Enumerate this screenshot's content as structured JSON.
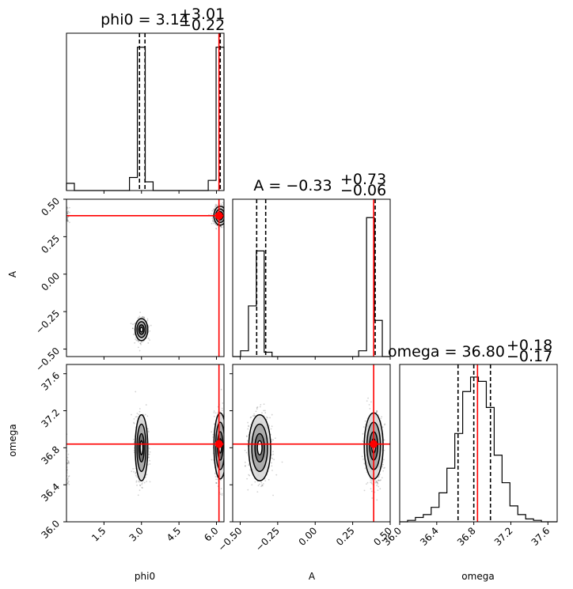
{
  "chart_data": {
    "type": "corner",
    "parameters": [
      {
        "name": "phi0",
        "range": [
          0,
          6.3
        ],
        "ticks": [
          1.5,
          3.0,
          4.5,
          6.0
        ],
        "tick_labels": [
          "1.5",
          "3.0",
          "4.5",
          "6.0"
        ],
        "truth": 6.1
      },
      {
        "name": "A",
        "range": [
          -0.55,
          0.5
        ],
        "ticks": [
          -0.5,
          -0.25,
          0.0,
          0.25,
          0.5
        ],
        "tick_labels": [
          "−0.50",
          "−0.25",
          "0.00",
          "0.25",
          "0.50"
        ],
        "truth": 0.39
      },
      {
        "name": "omega",
        "range": [
          36.0,
          37.7
        ],
        "ticks": [
          36.0,
          36.4,
          36.8,
          37.2,
          37.6
        ],
        "tick_labels": [
          "36.0",
          "36.4",
          "36.8",
          "37.2",
          "37.6"
        ],
        "truth": 36.84
      }
    ],
    "titles": [
      {
        "label": "phi0 = 3.14",
        "plus": "+3.01",
        "minus": "−0.22"
      },
      {
        "label": "A = −0.33",
        "plus": "+0.73",
        "minus": "−0.06"
      },
      {
        "label": "omega = 36.80",
        "plus": "+0.18",
        "minus": "−0.17"
      }
    ],
    "quantiles": [
      [
        2.92,
        3.14,
        6.15
      ],
      [
        -0.39,
        -0.33,
        0.4
      ],
      [
        36.63,
        36.8,
        36.98
      ]
    ],
    "histograms": [
      {
        "edges": [
          0,
          0.315,
          0.63,
          0.945,
          1.26,
          1.575,
          1.89,
          2.205,
          2.52,
          2.835,
          3.15,
          3.465,
          3.78,
          4.095,
          4.41,
          4.725,
          5.04,
          5.355,
          5.67,
          5.985,
          6.3
        ],
        "counts": [
          0.05,
          0,
          0,
          0,
          0,
          0,
          0,
          0,
          0.09,
          0.99,
          0.06,
          0,
          0,
          0,
          0,
          0,
          0,
          0,
          0.07,
          0.99
        ]
      },
      {
        "edges": [
          -0.55,
          -0.4975,
          -0.445,
          -0.3925,
          -0.34,
          -0.2875,
          -0.235,
          -0.1825,
          -0.13,
          -0.0775,
          -0.025,
          0.0275,
          0.08,
          0.1325,
          0.185,
          0.2375,
          0.29,
          0.3425,
          0.395,
          0.4475,
          0.5
        ],
        "counts": [
          0,
          0.04,
          0.35,
          0.73,
          0.03,
          0,
          0,
          0,
          0,
          0,
          0,
          0,
          0,
          0,
          0,
          0,
          0.04,
          0.96,
          0.25,
          0
        ]
      },
      {
        "edges": [
          36.0,
          36.085,
          36.17,
          36.255,
          36.34,
          36.425,
          36.51,
          36.595,
          36.68,
          36.765,
          36.85,
          36.935,
          37.02,
          37.105,
          37.19,
          37.275,
          37.36,
          37.445,
          37.53,
          37.615,
          37.7
        ],
        "counts": [
          0,
          0.01,
          0.03,
          0.05,
          0.1,
          0.2,
          0.37,
          0.61,
          0.9,
          1.0,
          0.97,
          0.79,
          0.46,
          0.27,
          0.11,
          0.05,
          0.02,
          0.01,
          0,
          0
        ]
      }
    ],
    "modes": [
      {
        "phi0": 3.0,
        "A": -0.37,
        "omega": 36.8,
        "weight": 0.5,
        "sd": {
          "phi0": 0.12,
          "A": 0.035,
          "omega": 0.17
        }
      },
      {
        "phi0": 6.15,
        "A": 0.39,
        "omega": 36.82,
        "weight": 0.5,
        "sd": {
          "phi0": 0.12,
          "A": 0.03,
          "omega": 0.17
        }
      },
      {
        "phi0": 0.03,
        "A": 0.4,
        "omega": 36.55,
        "weight": 0.03,
        "sd": {
          "phi0": 0.05,
          "A": 0.03,
          "omega": 0.12
        }
      }
    ],
    "colors": {
      "truth": "#ff0000",
      "hist": "#000000",
      "points": "#000000",
      "contour_fill": [
        "#d9d9d9",
        "#a6a6a6",
        "#737373"
      ]
    }
  }
}
